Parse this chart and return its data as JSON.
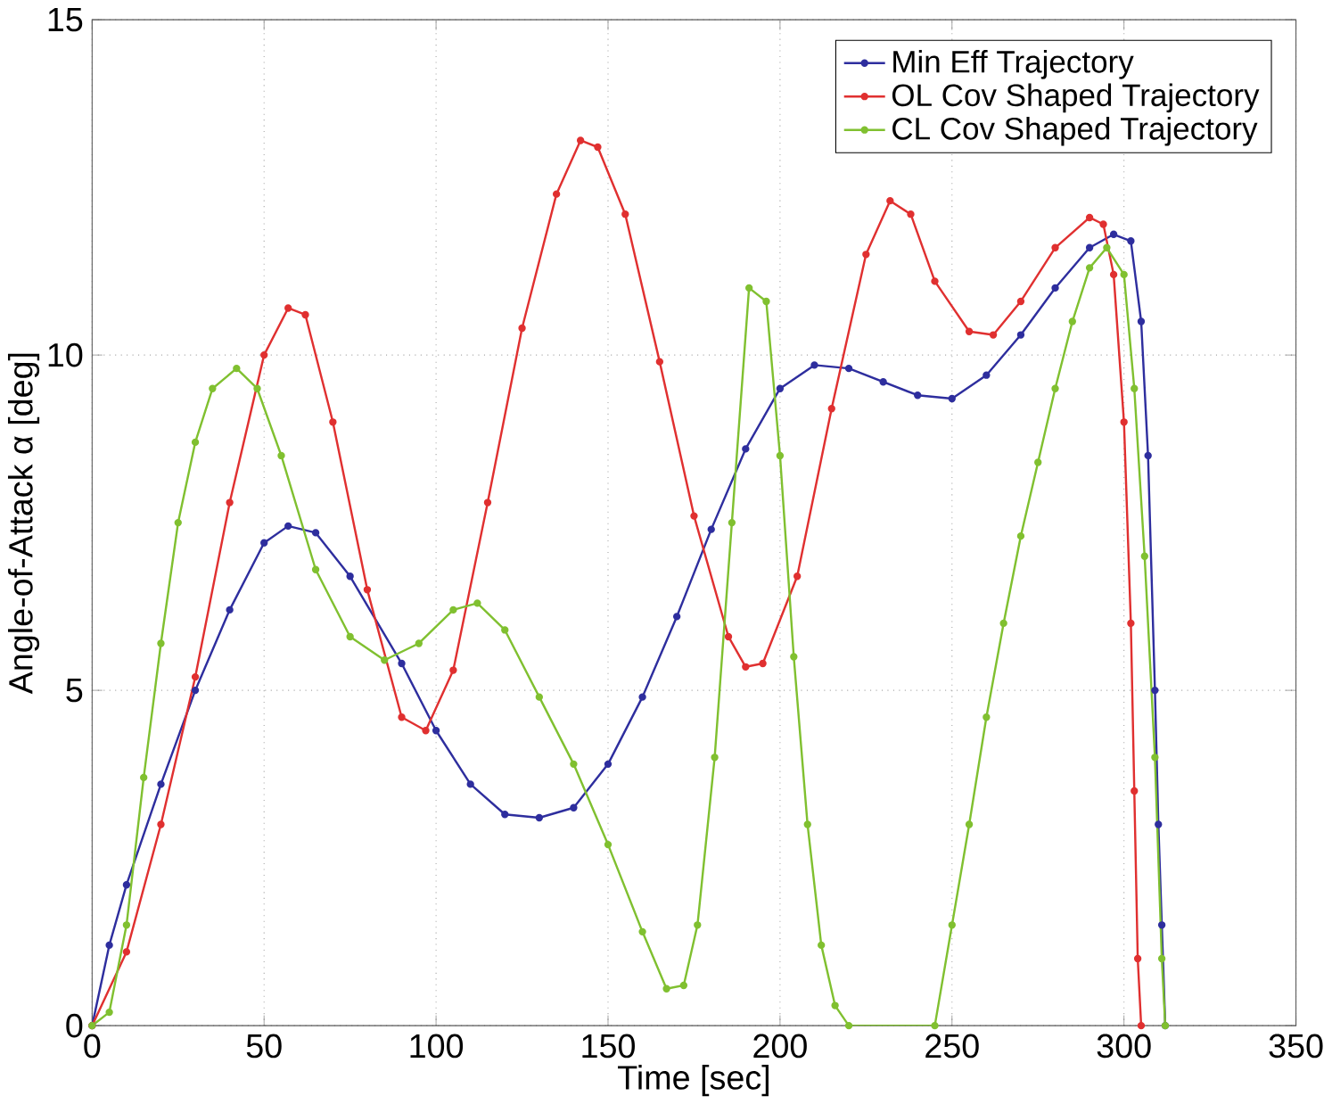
{
  "chart_data": {
    "type": "line",
    "xlabel": "Time [sec]",
    "ylabel": "Angle-of-Attack α [deg]",
    "xlim": [
      0,
      350
    ],
    "ylim": [
      0,
      15
    ],
    "xticks": [
      0,
      50,
      100,
      150,
      200,
      250,
      300,
      350
    ],
    "yticks": [
      0,
      5,
      10,
      15
    ],
    "grid": true,
    "legend": "top right",
    "marker": "circle",
    "line_style": "solid",
    "series": [
      {
        "name": "Min Eff Trajectory",
        "color": "#2e2e9e",
        "x": [
          0,
          5,
          10,
          20,
          30,
          40,
          50,
          57,
          65,
          75,
          90,
          100,
          110,
          120,
          130,
          140,
          150,
          160,
          170,
          180,
          190,
          200,
          210,
          220,
          230,
          240,
          250,
          260,
          270,
          280,
          290,
          297,
          302,
          305,
          307,
          309,
          310,
          311,
          312
        ],
        "values": [
          0,
          1.2,
          2.1,
          3.6,
          5.0,
          6.2,
          7.2,
          7.45,
          7.35,
          6.7,
          5.4,
          4.4,
          3.6,
          3.15,
          3.1,
          3.25,
          3.9,
          4.9,
          6.1,
          7.4,
          8.6,
          9.5,
          9.85,
          9.8,
          9.6,
          9.4,
          9.35,
          9.7,
          10.3,
          11.0,
          11.6,
          11.8,
          11.7,
          10.5,
          8.5,
          5.0,
          3.0,
          1.5,
          0
        ]
      },
      {
        "name": "OL Cov Shaped Trajectory",
        "color": "#e03030",
        "x": [
          0,
          10,
          20,
          30,
          40,
          50,
          57,
          62,
          70,
          80,
          90,
          97,
          105,
          115,
          125,
          135,
          142,
          147,
          155,
          165,
          175,
          185,
          190,
          195,
          205,
          215,
          225,
          232,
          238,
          245,
          255,
          262,
          270,
          280,
          290,
          294,
          297,
          300,
          302,
          303,
          304,
          305
        ],
        "values": [
          0,
          1.1,
          3.0,
          5.2,
          7.8,
          10.0,
          10.7,
          10.6,
          9.0,
          6.5,
          4.6,
          4.4,
          5.3,
          7.8,
          10.4,
          12.4,
          13.2,
          13.1,
          12.1,
          9.9,
          7.6,
          5.8,
          5.35,
          5.4,
          6.7,
          9.2,
          11.5,
          12.3,
          12.1,
          11.1,
          10.35,
          10.3,
          10.8,
          11.6,
          12.05,
          11.95,
          11.2,
          9.0,
          6.0,
          3.5,
          1.0,
          0
        ]
      },
      {
        "name": "CL Cov Shaped Trajectory",
        "color": "#80c030",
        "x": [
          0,
          5,
          10,
          15,
          20,
          25,
          30,
          35,
          42,
          48,
          55,
          65,
          75,
          85,
          95,
          105,
          112,
          120,
          130,
          140,
          150,
          160,
          167,
          172,
          176,
          181,
          186,
          191,
          196,
          200,
          204,
          208,
          212,
          216,
          220,
          245,
          250,
          255,
          260,
          265,
          270,
          275,
          280,
          285,
          290,
          295,
          300,
          303,
          306,
          309,
          311,
          312
        ],
        "values": [
          0,
          0.2,
          1.5,
          3.7,
          5.7,
          7.5,
          8.7,
          9.5,
          9.8,
          9.5,
          8.5,
          6.8,
          5.8,
          5.45,
          5.7,
          6.2,
          6.3,
          5.9,
          4.9,
          3.9,
          2.7,
          1.4,
          0.55,
          0.6,
          1.5,
          4.0,
          7.5,
          11.0,
          10.8,
          8.5,
          5.5,
          3.0,
          1.2,
          0.3,
          0,
          0,
          1.5,
          3.0,
          4.6,
          6.0,
          7.3,
          8.4,
          9.5,
          10.5,
          11.3,
          11.6,
          11.2,
          9.5,
          7.0,
          4.0,
          1.0,
          0
        ]
      }
    ]
  }
}
